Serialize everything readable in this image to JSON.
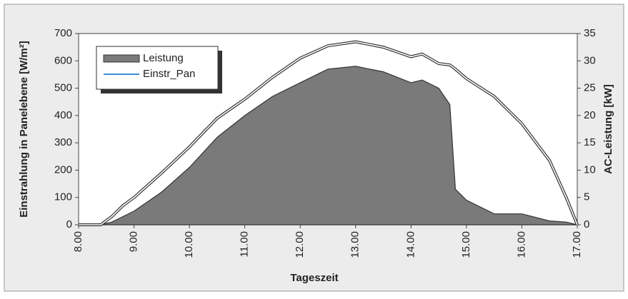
{
  "chart_data": {
    "type": "area-line",
    "xlabel": "Tageszeit",
    "ylabel": "Einstrahlung in Panelebene [W/m²]",
    "y2label": "AC-Leistung [kW]",
    "x": [
      8,
      8.4,
      8.6,
      8.8,
      9,
      9.5,
      10,
      10.5,
      11,
      11.5,
      12,
      12.5,
      13,
      13.5,
      14,
      14.2,
      14.5,
      14.7,
      14.8,
      15,
      15.5,
      16,
      16.5,
      16.8,
      17
    ],
    "series": [
      {
        "name": "Leistung",
        "color": "#7a7a7a",
        "axis": "y2",
        "values": [
          0,
          0,
          0.5,
          1.5,
          2.5,
          6,
          10.5,
          16,
          20,
          23.5,
          26,
          28.5,
          29,
          28,
          26,
          26.5,
          25,
          22,
          6.5,
          4.5,
          2,
          2,
          0.7,
          0.5,
          0
        ]
      },
      {
        "name": "Einstr_Pan",
        "color": "#3d8fd6",
        "axis": "y",
        "values": [
          0,
          0,
          30,
          70,
          100,
          190,
          285,
          390,
          460,
          540,
          610,
          655,
          670,
          650,
          615,
          625,
          590,
          585,
          570,
          535,
          470,
          370,
          235,
          100,
          0
        ]
      }
    ],
    "xlim": [
      8,
      17
    ],
    "xticks": [
      {
        "value": 8,
        "label": "8.00"
      },
      {
        "value": 9,
        "label": "9.00"
      },
      {
        "value": 10,
        "label": "10.00"
      },
      {
        "value": 11,
        "label": "11.00"
      },
      {
        "value": 12,
        "label": "12.00"
      },
      {
        "value": 13,
        "label": "13.00"
      },
      {
        "value": 14,
        "label": "14.00"
      },
      {
        "value": 15,
        "label": "15.00"
      },
      {
        "value": 16,
        "label": "16.00"
      },
      {
        "value": 17,
        "label": "17.00"
      }
    ],
    "ylim": [
      0,
      700
    ],
    "yticks": [
      0,
      100,
      200,
      300,
      400,
      500,
      600,
      700
    ],
    "y2lim": [
      0,
      35
    ],
    "y2ticks": [
      0,
      5,
      10,
      15,
      20,
      25,
      30,
      35
    ]
  }
}
